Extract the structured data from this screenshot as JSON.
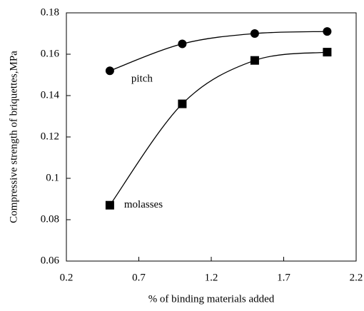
{
  "chart_data": {
    "type": "line",
    "xlabel": "% of binding materials added",
    "ylabel": "Compressive strength of  briquettes,MPa",
    "x": [
      0.5,
      1,
      1.5,
      2
    ],
    "series": [
      {
        "name": "pitch",
        "color": "#000000",
        "marker": "circle",
        "values": [
          0.152,
          0.165,
          0.17,
          0.171
        ]
      },
      {
        "name": "molasses",
        "color": "#000000",
        "marker": "square",
        "values": [
          0.087,
          0.136,
          0.157,
          0.161
        ]
      }
    ],
    "xlim": [
      0.2,
      2.2
    ],
    "xticks": [
      0.2,
      0.7,
      1.2,
      1.7,
      2.2
    ],
    "ylim": [
      0.06,
      0.18
    ],
    "yticks": [
      0.06,
      0.08,
      0.1,
      0.12,
      0.14,
      0.16,
      0.18
    ],
    "grid": false,
    "smooth": true
  }
}
